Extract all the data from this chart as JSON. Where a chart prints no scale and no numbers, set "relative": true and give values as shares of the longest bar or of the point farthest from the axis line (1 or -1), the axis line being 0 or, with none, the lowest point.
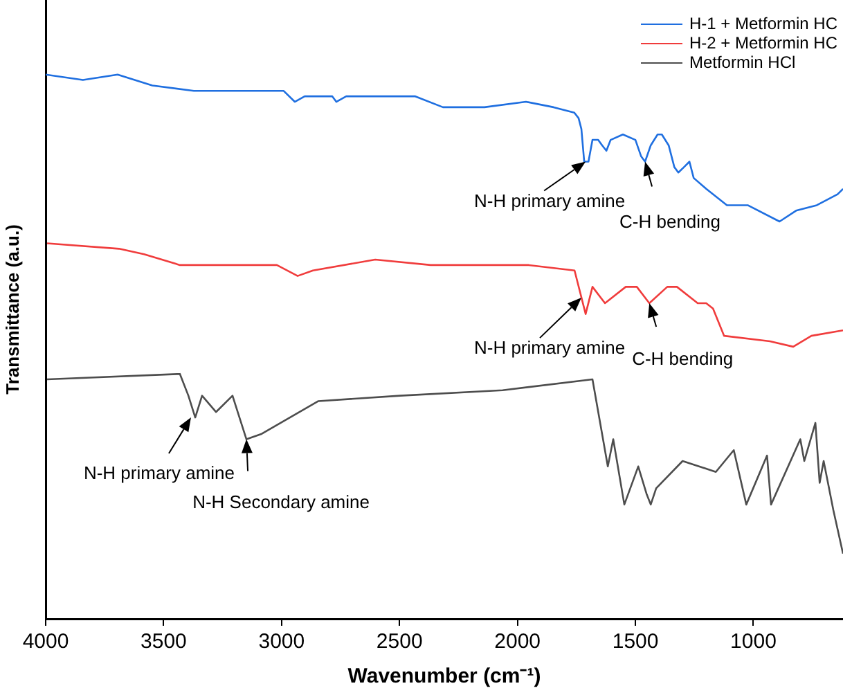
{
  "chart_data": {
    "type": "line",
    "xlabel": "Wavenumber (cm⁻¹)",
    "ylabel": "Transmittance (a.u.)",
    "relative": true,
    "xlim": [
      4000,
      620
    ],
    "xticks": [
      4000,
      3500,
      3000,
      2500,
      2000,
      1500,
      1000
    ],
    "legend": "top right",
    "grid": false,
    "marker": "none",
    "line_style": "solid",
    "series": [
      {
        "name": "H-1 + Metformin HC",
        "color": "#1f6fe0",
        "x": [
          4000,
          3842,
          3695,
          3548,
          3372,
          3137,
          2991,
          2944,
          2902,
          2785,
          2768,
          2726,
          2609,
          2433,
          2316,
          2140,
          1964,
          1847,
          1759,
          1741,
          1729,
          1717,
          1699,
          1682,
          1658,
          1641,
          1623,
          1605,
          1553,
          1500,
          1476,
          1459,
          1435,
          1406,
          1388,
          1359,
          1335,
          1318,
          1294,
          1271,
          1253,
          1200,
          1112,
          1024,
          889,
          819,
          731,
          643,
          620
        ],
        "values": [
          1.0,
          0.99,
          1,
          0.98,
          0.97,
          0.97,
          0.97,
          0.95,
          0.96,
          0.96,
          0.95,
          0.96,
          0.96,
          0.96,
          0.94,
          0.94,
          0.95,
          0.94,
          0.93,
          0.92,
          0.9,
          0.84,
          0.84,
          0.88,
          0.88,
          0.87,
          0.86,
          0.88,
          0.89,
          0.88,
          0.85,
          0.84,
          0.87,
          0.89,
          0.89,
          0.87,
          0.83,
          0.82,
          0.83,
          0.84,
          0.81,
          0.79,
          0.76,
          0.76,
          0.73,
          0.75,
          0.76,
          0.78,
          0.79
        ]
      },
      {
        "name": "H-2 + Metformin HC",
        "color": "#f03c3c",
        "x": [
          3994,
          3689,
          3583,
          3431,
          3255,
          3020,
          2932,
          2867,
          2603,
          2368,
          1952,
          1758,
          1711,
          1682,
          1629,
          1541,
          1494,
          1441,
          1365,
          1324,
          1236,
          1200,
          1171,
          1124,
          930,
          831,
          754,
          620
        ],
        "values": [
          0.69,
          0.68,
          0.67,
          0.65,
          0.65,
          0.65,
          0.63,
          0.64,
          0.66,
          0.65,
          0.65,
          0.64,
          0.56,
          0.61,
          0.58,
          0.61,
          0.61,
          0.58,
          0.61,
          0.61,
          0.58,
          0.58,
          0.57,
          0.52,
          0.51,
          0.5,
          0.52,
          0.53
        ]
      },
      {
        "name": "Metformin HCl",
        "color": "#4d4d4d",
        "x": [
          3994,
          3431,
          3395,
          3366,
          3337,
          3278,
          3208,
          3149,
          3084,
          2844,
          2498,
          2063,
          1682,
          1617,
          1594,
          1547,
          1488,
          1453,
          1435,
          1412,
          1300,
          1159,
          1083,
          1030,
          942,
          925,
          801,
          784,
          737,
          719,
          702,
          661,
          620
        ],
        "values": [
          0.44,
          0.45,
          0.41,
          0.37,
          0.41,
          0.38,
          0.41,
          0.33,
          0.34,
          0.4,
          0.41,
          0.42,
          0.44,
          0.28,
          0.33,
          0.21,
          0.28,
          0.23,
          0.21,
          0.24,
          0.29,
          0.27,
          0.31,
          0.21,
          0.3,
          0.21,
          0.33,
          0.29,
          0.36,
          0.25,
          0.29,
          0.2,
          0.12
        ]
      }
    ],
    "annotations": [
      {
        "text": "N-H primary amine",
        "x": 1711,
        "y": 0.84
      },
      {
        "text": "C-H bending",
        "x": 1459,
        "y": 0.84
      },
      {
        "text": "N-H primary amine",
        "x": 1729,
        "y": 0.59
      },
      {
        "text": "C-H bending",
        "x": 1441,
        "y": 0.58
      },
      {
        "text": "N-H primary amine",
        "x": 3384,
        "y": 0.37
      },
      {
        "text": "N-H Secondary amine",
        "x": 3149,
        "y": 0.33
      }
    ]
  }
}
